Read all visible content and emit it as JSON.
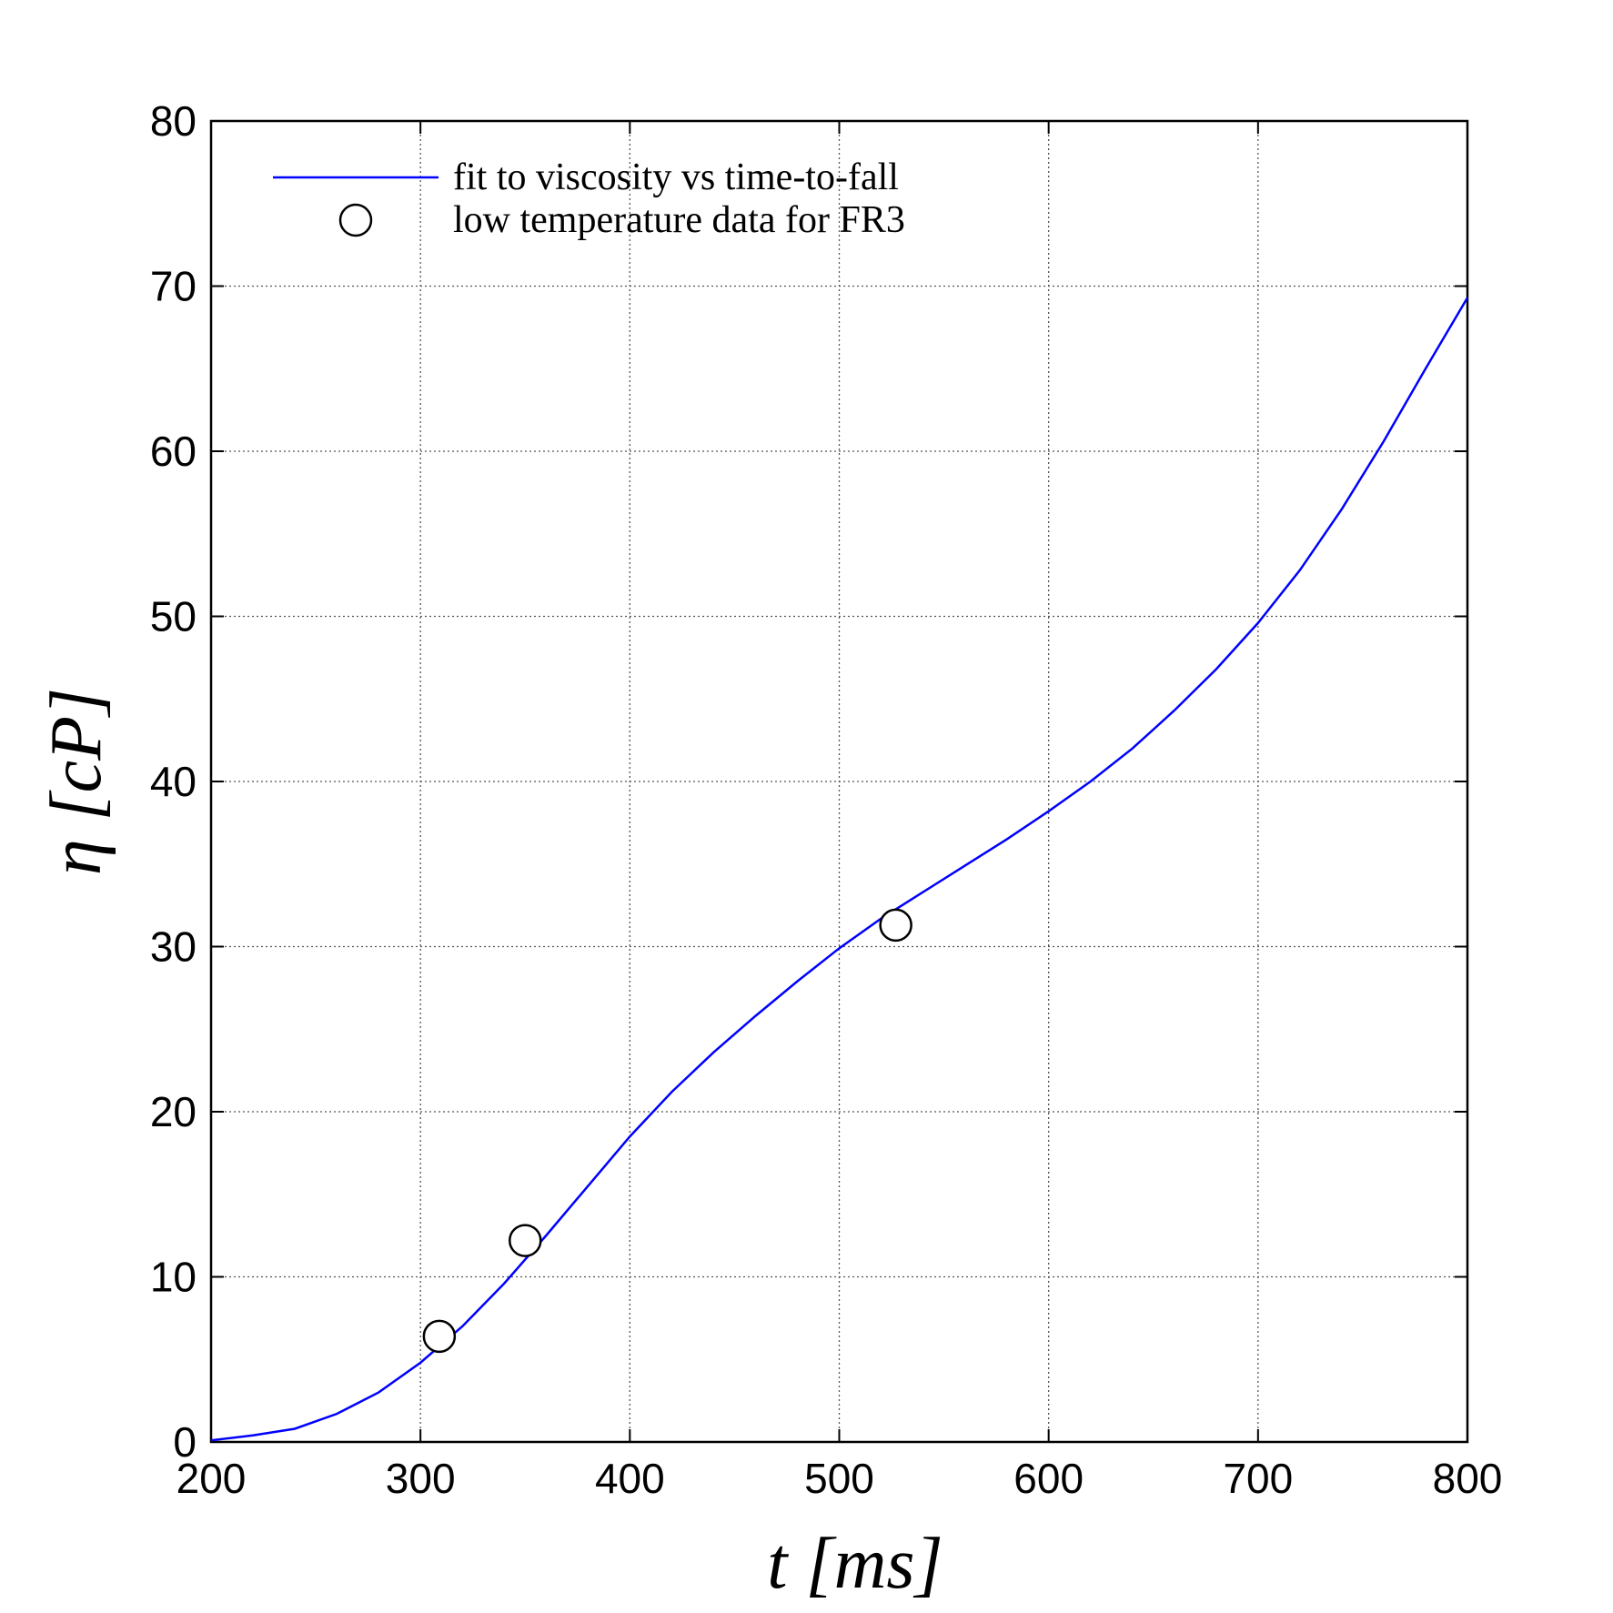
{
  "chart_data": {
    "type": "line",
    "x_label": "t [ms]",
    "y_label": "η [cP]",
    "xlim": [
      200,
      800
    ],
    "xticks": [
      200,
      300,
      400,
      500,
      600,
      700,
      800
    ],
    "ylim": [
      0,
      80
    ],
    "yticks": [
      0,
      10,
      20,
      30,
      40,
      50,
      60,
      70,
      80
    ],
    "grid": true,
    "legend": "upper left",
    "series": [
      {
        "name": "fit to viscosity vs time-to-fall",
        "color": "#0000ff",
        "marker": "none",
        "x": [
          200,
          220,
          240,
          260,
          280,
          300,
          320,
          340,
          360,
          380,
          400,
          420,
          440,
          460,
          480,
          500,
          520,
          540,
          560,
          580,
          600,
          620,
          640,
          660,
          680,
          700,
          720,
          740,
          760,
          780,
          800
        ],
        "values": [
          0.1,
          0.4,
          0.8,
          1.7,
          3.0,
          4.8,
          7.0,
          9.6,
          12.5,
          15.5,
          18.5,
          21.2,
          23.6,
          25.8,
          27.9,
          29.9,
          31.7,
          33.3,
          34.9,
          36.5,
          38.2,
          40.0,
          42.0,
          44.3,
          46.8,
          49.6,
          52.8,
          56.5,
          60.6,
          65.0,
          69.3
        ]
      },
      {
        "name": "low temperature data for FR3",
        "color": "#000000",
        "marker": "circle",
        "x": [
          309,
          350,
          527
        ],
        "values": [
          6.4,
          12.2,
          31.3
        ]
      }
    ]
  }
}
